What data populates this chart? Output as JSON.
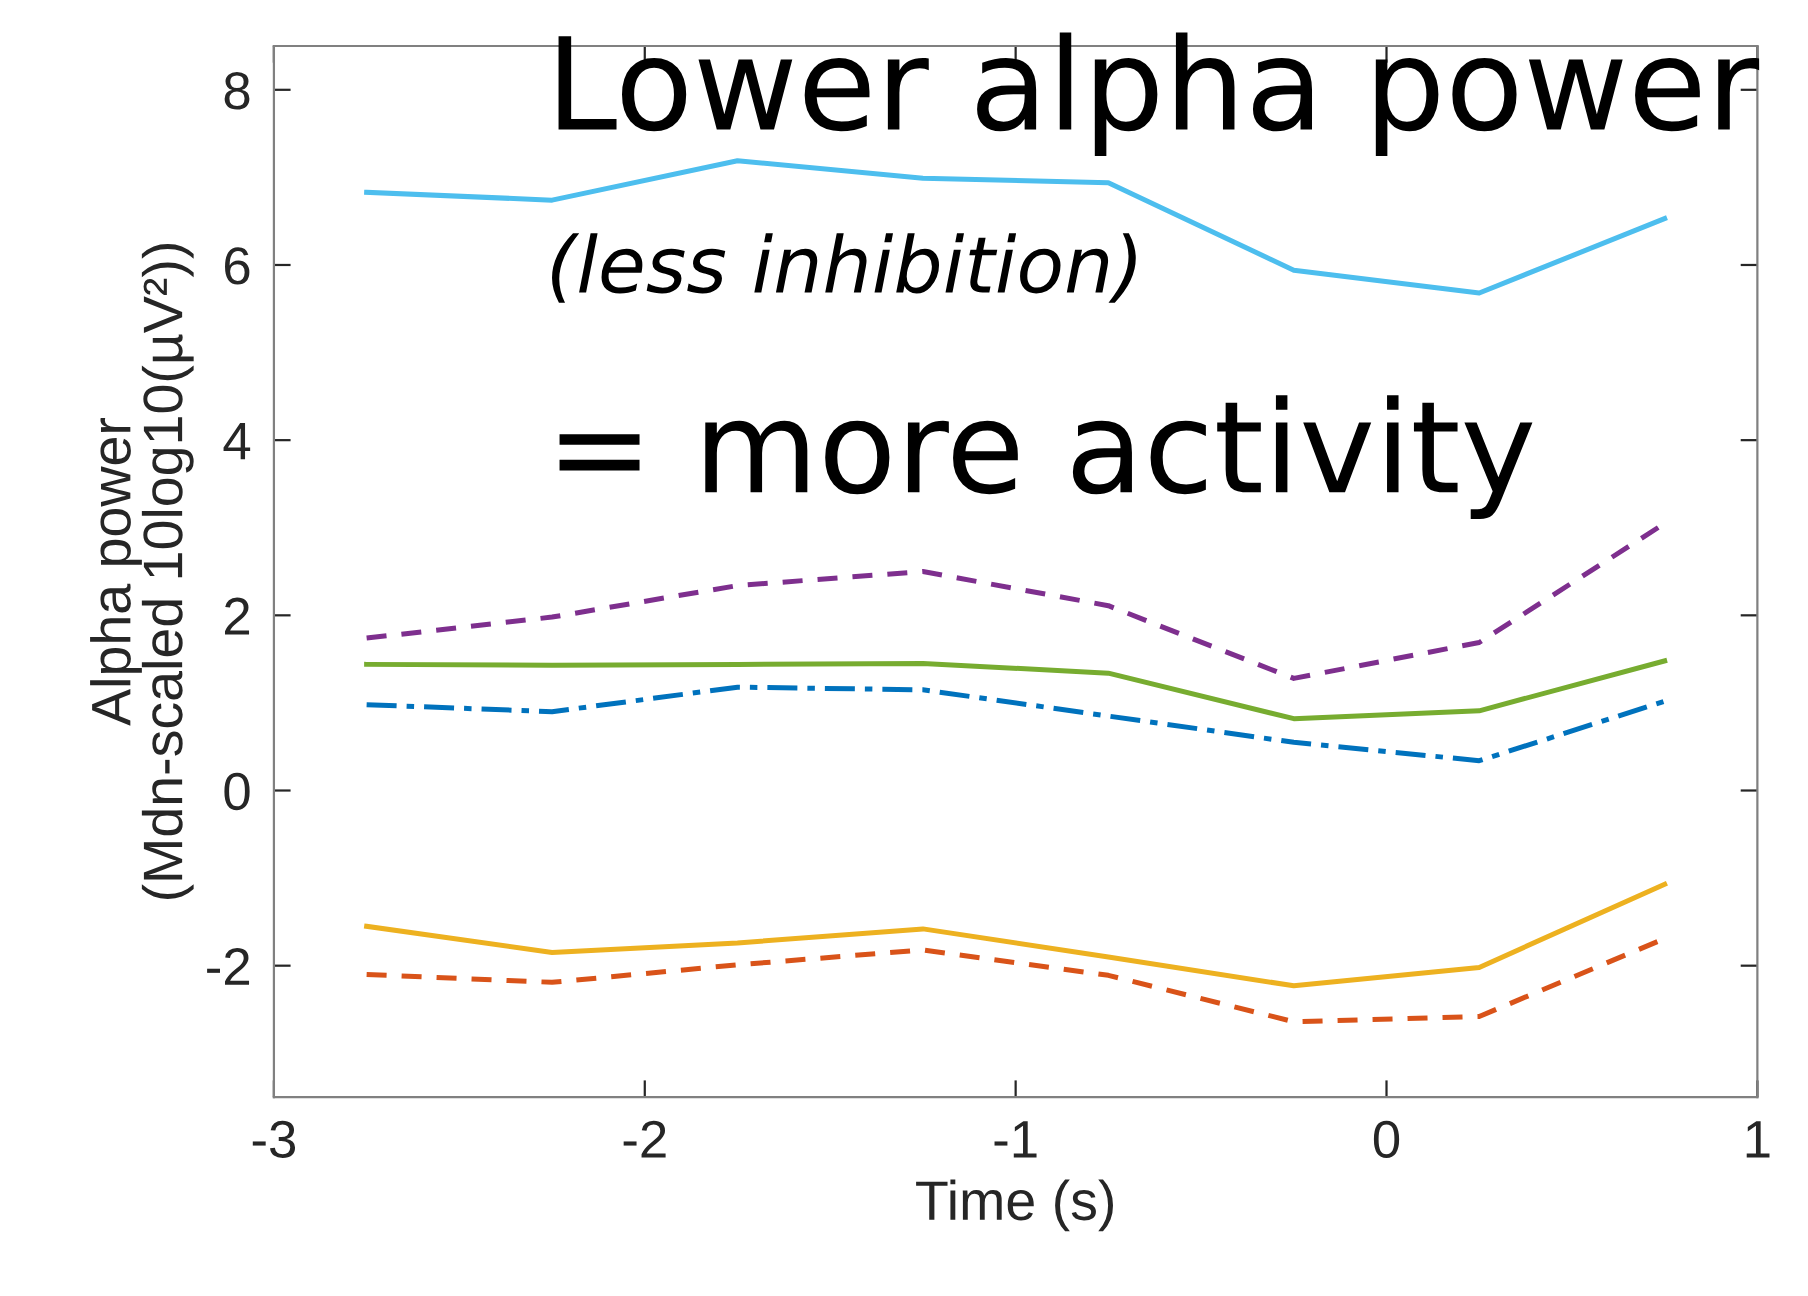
{
  "chart_data": {
    "type": "line",
    "xlabel": "Time (s)",
    "ylabel": "Alpha power\n(Mdn-scaled 10log10(µV²))",
    "x": [
      -2.75,
      -2.25,
      -1.75,
      -1.25,
      -0.75,
      -0.25,
      0.25,
      0.75
    ],
    "series": [
      {
        "color": "#4dbeee",
        "line_style": "solid",
        "values": [
          6.83,
          6.74,
          7.19,
          6.99,
          6.94,
          5.94,
          5.68,
          6.53
        ]
      },
      {
        "color": "#7e2f8e",
        "line_style": "dashed",
        "values": [
          1.74,
          1.98,
          2.34,
          2.5,
          2.11,
          1.28,
          1.69,
          3.05
        ]
      },
      {
        "color": "#77ac30",
        "line_style": "solid",
        "values": [
          1.44,
          1.43,
          1.44,
          1.45,
          1.34,
          0.82,
          0.91,
          1.48
        ]
      },
      {
        "color": "#0072bd",
        "line_style": "dashdot",
        "values": [
          0.98,
          0.9,
          1.18,
          1.15,
          0.85,
          0.55,
          0.34,
          1.02
        ]
      },
      {
        "color": "#edb120",
        "line_style": "solid",
        "values": [
          -1.55,
          -1.85,
          -1.74,
          -1.58,
          -1.9,
          -2.23,
          -2.02,
          -1.07
        ]
      },
      {
        "color": "#d95319",
        "line_style": "dashed",
        "values": [
          -2.1,
          -2.19,
          -1.99,
          -1.82,
          -2.11,
          -2.64,
          -2.58,
          -1.69
        ]
      }
    ],
    "xlim": [
      -3,
      1
    ],
    "xticks": [
      -3,
      -2,
      -1,
      0,
      1
    ],
    "ylim": [
      -3.5,
      8.5
    ],
    "yticks": [
      -2,
      0,
      2,
      4,
      6,
      8
    ],
    "grid": false,
    "marker": "none",
    "annotations": [
      "Lower alpha power",
      "(less inhibition)",
      "= more activity"
    ]
  }
}
